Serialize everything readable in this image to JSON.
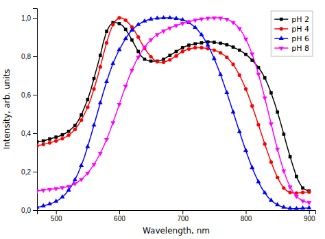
{
  "chart_data": {
    "type": "line",
    "xlabel": "Wavelength, nm",
    "ylabel": "Intensity, arb. units",
    "xlim": [
      470,
      910
    ],
    "ylim": [
      0.0,
      1.05
    ],
    "xticks": [
      500,
      600,
      700,
      800,
      900
    ],
    "yticks": [
      {
        "value": 0.0,
        "label": "0,0"
      },
      {
        "value": 0.2,
        "label": "0,2"
      },
      {
        "value": 0.4,
        "label": "0,4"
      },
      {
        "value": 0.6,
        "label": "0,6"
      },
      {
        "value": 0.8,
        "label": "0,8"
      },
      {
        "value": 1.0,
        "label": "1,0"
      }
    ],
    "grid": false,
    "legend": "upper right",
    "x": [
      470,
      475,
      480,
      485,
      490,
      495,
      500,
      505,
      510,
      515,
      520,
      525,
      530,
      535,
      540,
      545,
      550,
      555,
      560,
      565,
      570,
      575,
      580,
      585,
      590,
      595,
      600,
      605,
      610,
      615,
      620,
      625,
      630,
      635,
      640,
      645,
      650,
      655,
      660,
      665,
      670,
      675,
      680,
      685,
      690,
      695,
      700,
      705,
      710,
      715,
      720,
      725,
      730,
      735,
      740,
      745,
      750,
      755,
      760,
      765,
      770,
      775,
      780,
      785,
      790,
      795,
      800,
      805,
      810,
      815,
      820,
      825,
      830,
      835,
      840,
      845,
      850,
      855,
      860,
      865,
      870,
      875,
      880,
      885,
      890,
      895,
      900
    ],
    "series": [
      {
        "name": "pH 2",
        "color": "#000000",
        "marker": "square",
        "values": [
          0.355,
          0.358,
          0.36,
          0.365,
          0.37,
          0.375,
          0.38,
          0.385,
          0.392,
          0.4,
          0.41,
          0.425,
          0.44,
          0.465,
          0.495,
          0.535,
          0.575,
          0.625,
          0.685,
          0.745,
          0.805,
          0.875,
          0.93,
          0.96,
          0.975,
          0.975,
          0.97,
          0.96,
          0.94,
          0.915,
          0.885,
          0.855,
          0.825,
          0.8,
          0.785,
          0.778,
          0.775,
          0.775,
          0.775,
          0.778,
          0.785,
          0.795,
          0.805,
          0.815,
          0.825,
          0.835,
          0.845,
          0.852,
          0.858,
          0.862,
          0.865,
          0.868,
          0.87,
          0.873,
          0.875,
          0.875,
          0.873,
          0.87,
          0.868,
          0.865,
          0.86,
          0.855,
          0.848,
          0.84,
          0.832,
          0.822,
          0.81,
          0.796,
          0.78,
          0.762,
          0.742,
          0.718,
          0.688,
          0.652,
          0.61,
          0.562,
          0.51,
          0.455,
          0.395,
          0.335,
          0.278,
          0.225,
          0.175,
          0.14,
          0.115,
          0.105,
          0.1
        ]
      },
      {
        "name": "pH 4",
        "color": "#ff0000",
        "marker": "circle",
        "values": [
          0.335,
          0.338,
          0.342,
          0.346,
          0.35,
          0.355,
          0.36,
          0.366,
          0.372,
          0.38,
          0.39,
          0.403,
          0.42,
          0.442,
          0.468,
          0.5,
          0.535,
          0.578,
          0.63,
          0.685,
          0.745,
          0.81,
          0.87,
          0.925,
          0.965,
          0.988,
          1.0,
          0.998,
          0.988,
          0.972,
          0.952,
          0.928,
          0.9,
          0.87,
          0.842,
          0.818,
          0.798,
          0.782,
          0.772,
          0.768,
          0.77,
          0.775,
          0.782,
          0.792,
          0.802,
          0.815,
          0.825,
          0.832,
          0.838,
          0.842,
          0.845,
          0.845,
          0.845,
          0.843,
          0.84,
          0.836,
          0.832,
          0.826,
          0.818,
          0.808,
          0.795,
          0.778,
          0.758,
          0.732,
          0.702,
          0.668,
          0.63,
          0.588,
          0.542,
          0.494,
          0.444,
          0.394,
          0.344,
          0.296,
          0.25,
          0.208,
          0.17,
          0.14,
          0.115,
          0.1,
          0.092,
          0.089,
          0.089,
          0.09,
          0.092,
          0.094,
          0.095
        ]
      },
      {
        "name": "pH 6",
        "color": "#0000ff",
        "marker": "triangle-up",
        "values": [
          0.015,
          0.018,
          0.022,
          0.027,
          0.032,
          0.038,
          0.046,
          0.055,
          0.068,
          0.084,
          0.104,
          0.128,
          0.158,
          0.193,
          0.232,
          0.278,
          0.33,
          0.385,
          0.442,
          0.5,
          0.558,
          0.614,
          0.668,
          0.718,
          0.762,
          0.8,
          0.834,
          0.864,
          0.892,
          0.916,
          0.936,
          0.952,
          0.965,
          0.975,
          0.983,
          0.989,
          0.993,
          0.996,
          0.998,
          0.999,
          1.0,
          1.0,
          1.0,
          0.999,
          0.997,
          0.994,
          0.99,
          0.984,
          0.975,
          0.964,
          0.95,
          0.933,
          0.912,
          0.887,
          0.858,
          0.825,
          0.788,
          0.748,
          0.705,
          0.659,
          0.611,
          0.561,
          0.51,
          0.459,
          0.408,
          0.358,
          0.31,
          0.264,
          0.221,
          0.182,
          0.147,
          0.116,
          0.09,
          0.068,
          0.051,
          0.038,
          0.028,
          0.02,
          0.015,
          0.011,
          0.009,
          0.008,
          0.008,
          0.009,
          0.01,
          0.011,
          0.012
        ]
      },
      {
        "name": "pH 8",
        "color": "#ff00ff",
        "marker": "triangle-down",
        "values": [
          0.1,
          0.102,
          0.104,
          0.106,
          0.108,
          0.11,
          0.112,
          0.114,
          0.117,
          0.12,
          0.124,
          0.13,
          0.138,
          0.148,
          0.16,
          0.175,
          0.193,
          0.214,
          0.238,
          0.265,
          0.296,
          0.33,
          0.368,
          0.41,
          0.455,
          0.502,
          0.55,
          0.598,
          0.644,
          0.688,
          0.728,
          0.764,
          0.796,
          0.824,
          0.848,
          0.869,
          0.886,
          0.901,
          0.913,
          0.923,
          0.932,
          0.94,
          0.947,
          0.954,
          0.96,
          0.966,
          0.971,
          0.976,
          0.98,
          0.984,
          0.988,
          0.991,
          0.994,
          0.996,
          0.998,
          0.999,
          1.0,
          1.0,
          0.999,
          0.997,
          0.993,
          0.986,
          0.976,
          0.962,
          0.944,
          0.92,
          0.89,
          0.854,
          0.812,
          0.763,
          0.708,
          0.648,
          0.584,
          0.517,
          0.449,
          0.382,
          0.317,
          0.258,
          0.204,
          0.158,
          0.121,
          0.093,
          0.072,
          0.058,
          0.048,
          0.042,
          0.04
        ]
      }
    ]
  }
}
